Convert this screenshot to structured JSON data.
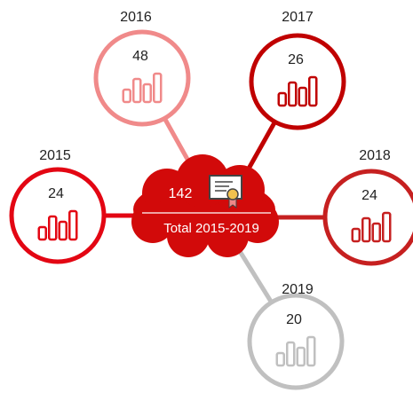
{
  "center": {
    "value": 142,
    "label": "Total 2015-2019"
  },
  "nodes": [
    {
      "year": "2015",
      "value": 24
    },
    {
      "year": "2016",
      "value": 48
    },
    {
      "year": "2017",
      "value": 26
    },
    {
      "year": "2018",
      "value": 24
    },
    {
      "year": "2019",
      "value": 20
    }
  ]
}
